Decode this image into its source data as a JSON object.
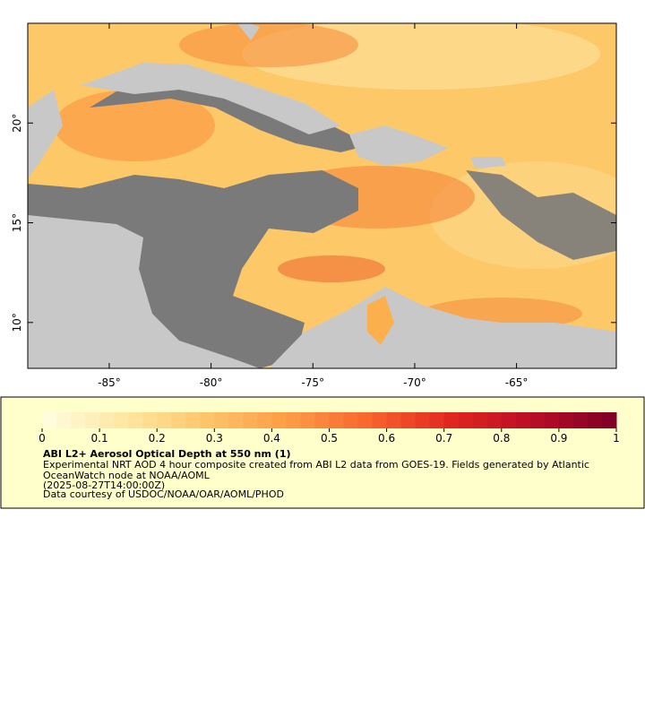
{
  "map": {
    "xlim": [
      -89,
      -60.1
    ],
    "ylim": [
      7.7,
      25
    ],
    "xticks": [
      {
        "value": -85,
        "label": "-85°"
      },
      {
        "value": -80,
        "label": "-80°"
      },
      {
        "value": -75,
        "label": "-75°"
      },
      {
        "value": -70,
        "label": "-70°"
      },
      {
        "value": -65,
        "label": "-65°"
      }
    ],
    "yticks": [
      {
        "value": 10,
        "label": "10°"
      },
      {
        "value": 15,
        "label": "15°"
      },
      {
        "value": 20,
        "label": "20°"
      }
    ]
  },
  "colorbar": {
    "lim": [
      0,
      1
    ],
    "ticks": [
      0,
      0.1,
      0.2,
      0.3,
      0.4,
      0.5,
      0.6,
      0.7,
      0.8,
      0.9,
      1
    ],
    "colors": [
      "#fffde0",
      "#fee8a2",
      "#fdc56a",
      "#fd9c45",
      "#f8642e",
      "#e0261f",
      "#b80d26",
      "#7e0026"
    ]
  },
  "legend": {
    "title": "ABI L2+ Aerosol Optical Depth at 550 nm (1)",
    "lines": [
      "Experimental NRT AOD 4 hour composite created from ABI L2 data from GOES-19. Fields generated by Atlantic",
      "OceanWatch node at NOAA/AOML",
      "(2025-08-27T14:00:00Z)",
      "Data courtesy of USDOC/NOAA/OAR/AOML/PHOD"
    ]
  }
}
